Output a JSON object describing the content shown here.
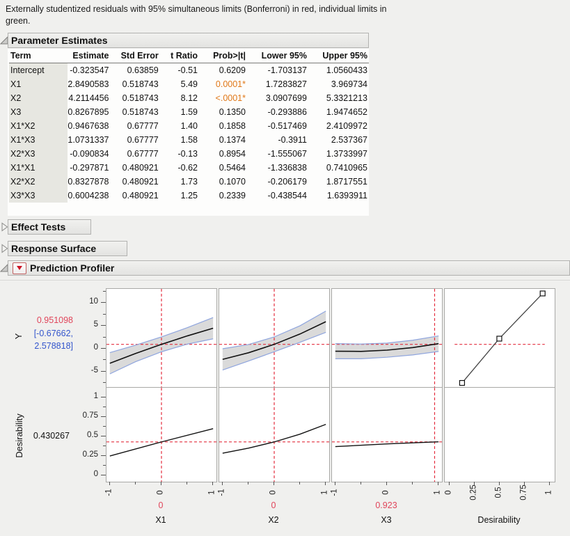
{
  "description": {
    "line1": "Externally studentized residuals with 95% simultaneous limits (Bonferroni) in red, individual limits in",
    "line2": "green."
  },
  "sections": {
    "parameter_estimates": {
      "title": "Parameter Estimates",
      "expanded": true
    },
    "effect_tests": {
      "title": "Effect Tests",
      "expanded": false
    },
    "response_surface": {
      "title": "Response Surface",
      "expanded": false
    },
    "prediction_profiler": {
      "title": "Prediction Profiler",
      "expanded": true
    }
  },
  "table": {
    "columns": [
      "Term",
      "Estimate",
      "Std Error",
      "t Ratio",
      "Prob>|t|",
      "Lower 95%",
      "Upper 95%"
    ],
    "rows": [
      {
        "term": "Intercept",
        "estimate": "-0.323547",
        "std_error": "0.63859",
        "t_ratio": "-0.51",
        "prob": "0.6209",
        "lower": "-1.703137",
        "upper": "1.0560433",
        "sig": false
      },
      {
        "term": "X1",
        "estimate": "2.8490583",
        "std_error": "0.518743",
        "t_ratio": "5.49",
        "prob": "0.0001*",
        "lower": "1.7283827",
        "upper": "3.969734",
        "sig": true
      },
      {
        "term": "X2",
        "estimate": "4.2114456",
        "std_error": "0.518743",
        "t_ratio": "8.12",
        "prob": "<.0001*",
        "lower": "3.0907699",
        "upper": "5.3321213",
        "sig": true
      },
      {
        "term": "X3",
        "estimate": "0.8267895",
        "std_error": "0.518743",
        "t_ratio": "1.59",
        "prob": "0.1350",
        "lower": "-0.293886",
        "upper": "1.9474652",
        "sig": false
      },
      {
        "term": "X1*X2",
        "estimate": "0.9467638",
        "std_error": "0.67777",
        "t_ratio": "1.40",
        "prob": "0.1858",
        "lower": "-0.517469",
        "upper": "2.4109972",
        "sig": false
      },
      {
        "term": "X1*X3",
        "estimate": "1.0731337",
        "std_error": "0.67777",
        "t_ratio": "1.58",
        "prob": "0.1374",
        "lower": "-0.3911",
        "upper": "2.537367",
        "sig": false
      },
      {
        "term": "X2*X3",
        "estimate": "-0.090834",
        "std_error": "0.67777",
        "t_ratio": "-0.13",
        "prob": "0.8954",
        "lower": "-1.555067",
        "upper": "1.3733997",
        "sig": false
      },
      {
        "term": "X1*X1",
        "estimate": "-0.297871",
        "std_error": "0.480921",
        "t_ratio": "-0.62",
        "prob": "0.5464",
        "lower": "-1.336838",
        "upper": "0.7410965",
        "sig": false
      },
      {
        "term": "X2*X2",
        "estimate": "0.8327878",
        "std_error": "0.480921",
        "t_ratio": "1.73",
        "prob": "0.1070",
        "lower": "-0.206179",
        "upper": "1.8717551",
        "sig": false
      },
      {
        "term": "X3*X3",
        "estimate": "0.6004238",
        "std_error": "0.480921",
        "t_ratio": "1.25",
        "prob": "0.2339",
        "lower": "-0.438544",
        "upper": "1.6393911",
        "sig": false
      }
    ]
  },
  "colors": {
    "accent_red": "#e0455a",
    "dash_red": "#e42f3f",
    "ci_blue": "#3355cc",
    "sig_orange": "#e07818",
    "band_gray": "#dadada",
    "band_edge_blue": "#8fa5de"
  },
  "chart_data": {
    "type": "line",
    "title": "Prediction Profiler",
    "row_left_labels": {
      "y_label": "Y",
      "y_value": "0.951098",
      "y_ci_line1": "[-0.67662,",
      "y_ci_line2": "2.578818]",
      "d_label": "Desirability",
      "d_value": "0.430267"
    },
    "rows": [
      {
        "name": "Y",
        "current": 0.951098,
        "ci": [
          -0.67662,
          2.578818
        ],
        "ylim": [
          -8.4,
          13.1
        ],
        "hline": 0.951098,
        "yticks": {
          "majors": [
            10,
            5,
            0,
            -5
          ],
          "labels": [
            "10",
            "5",
            "0",
            "-5"
          ],
          "minors": [
            12.5,
            7.5,
            2.5,
            -2.5,
            -7.5
          ]
        },
        "panels": [
          {
            "factor": "X1",
            "x": [
              -1,
              -0.5,
              0,
              0.5,
              1
            ],
            "center": [
              -3.19,
              -1.04,
              0.95,
              2.8,
              4.49
            ],
            "upper": [
              -0.86,
              0.77,
              2.58,
              4.6,
              6.82
            ],
            "lower": [
              -5.52,
              -2.85,
              -0.68,
              1.0,
              2.16
            ],
            "vline": 0
          },
          {
            "factor": "X2",
            "x": [
              -1,
              -0.5,
              0,
              0.5,
              1
            ],
            "center": [
              -2.34,
              -0.9,
              0.95,
              3.22,
              5.91
            ],
            "upper": [
              -0.01,
              0.91,
              2.58,
              5.03,
              8.24
            ],
            "lower": [
              -4.67,
              -2.71,
              -0.68,
              1.41,
              3.58
            ],
            "vline": 0
          },
          {
            "factor": "X3",
            "x": [
              -1,
              -0.5,
              0,
              0.5,
              1
            ],
            "center": [
              -0.55,
              -0.59,
              -0.32,
              0.24,
              1.1
            ],
            "upper": [
              1.11,
              1.02,
              1.23,
              1.85,
              2.8
            ],
            "lower": [
              -2.21,
              -2.2,
              -1.87,
              -1.37,
              -0.6
            ],
            "vline": 0.923
          },
          {
            "factor": "Desirability",
            "points_x": [
              0.125,
              0.496,
              0.928
            ],
            "points_y": [
              -7.5,
              2.2,
              12.1
            ],
            "hline_span": [
              0.09,
              0.91
            ]
          }
        ]
      },
      {
        "name": "Desirability",
        "current": 0.430267,
        "ylim": [
          -0.08,
          1.125
        ],
        "hline": 0.430267,
        "yticks": {
          "majors": [
            1,
            0.75,
            0.5,
            0.25,
            0
          ],
          "labels": [
            "1",
            "0.75",
            "0.5",
            "0.25",
            "0"
          ],
          "minors": [
            0.875,
            0.625,
            0.375,
            0.125
          ]
        },
        "panels": [
          {
            "factor": "X1",
            "x": [
              -1,
              0,
              1
            ],
            "y": [
              0.25,
              0.43,
              0.6
            ],
            "vline": 0
          },
          {
            "factor": "X2",
            "x": [
              -1,
              -0.5,
              0,
              0.5,
              1
            ],
            "y": [
              0.285,
              0.35,
              0.43,
              0.53,
              0.655
            ],
            "vline": 0
          },
          {
            "factor": "X3",
            "x": [
              -1,
              0,
              1
            ],
            "y": [
              0.37,
              0.405,
              0.432
            ],
            "vline": 0.923
          },
          {
            "factor": "Desirability",
            "empty": true
          }
        ]
      }
    ],
    "x_axes": [
      {
        "label": "X1",
        "current": "0",
        "xlim": [
          -1.065,
          1.065
        ],
        "majors": [
          -1,
          0,
          1
        ],
        "labels": [
          "-1",
          "0",
          "1"
        ],
        "minors": [
          -0.5,
          0.5
        ]
      },
      {
        "label": "X2",
        "current": "0",
        "xlim": [
          -1.065,
          1.065
        ],
        "majors": [
          -1,
          0,
          1
        ],
        "labels": [
          "-1",
          "0",
          "1"
        ],
        "minors": [
          -0.5,
          0.5
        ]
      },
      {
        "label": "X3",
        "current": "0.923",
        "xlim": [
          -1.065,
          1.065
        ],
        "majors": [
          -1,
          0,
          1
        ],
        "labels": [
          "-1",
          "0",
          "1"
        ],
        "minors": [
          -0.5,
          0.5
        ]
      },
      {
        "label": "Desirability",
        "current": "",
        "xlim": [
          -0.048,
          1.048
        ],
        "majors": [
          0,
          0.25,
          0.5,
          0.75,
          1
        ],
        "labels": [
          "0",
          "0.25",
          "0.5",
          "0.75",
          "1"
        ],
        "minors": []
      }
    ]
  }
}
